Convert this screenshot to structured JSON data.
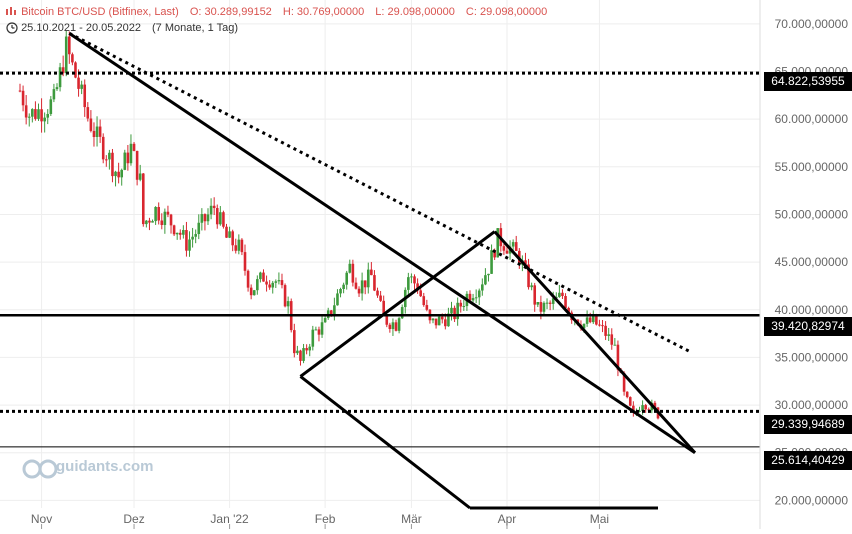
{
  "header": {
    "instrument": "Bitcoin BTC/USD (Bitfinex, Last)",
    "open": "O: 30.289,99152",
    "high": "H: 30.769,00000",
    "low": "L: 29.098,00000",
    "close": "C: 29.098,00000",
    "date_range": "25.10.2021 - 20.05.2022",
    "period": "(7 Monate, 1 Tag)"
  },
  "watermark": "guidants.com",
  "colors": {
    "up": "#3d9a3d",
    "down": "#d9262f",
    "line": "#000000",
    "grid": "#eeeeee",
    "axis_text": "#666666"
  },
  "chart_data": {
    "type": "candlestick",
    "x_ticks": [
      "Nov",
      "Dez",
      "Jan '22",
      "Feb",
      "Mär",
      "Apr",
      "Mai"
    ],
    "y_ticks": [
      "70.000,00000",
      "65.000,00000",
      "60.000,00000",
      "55.000,00000",
      "50.000,00000",
      "45.000,00000",
      "40.000,00000",
      "35.000,00000",
      "30.000,00000",
      "25.000,00000",
      "20.000,00000"
    ],
    "ylim": [
      19200,
      72500
    ],
    "xlim": [
      "2021-10-25",
      "2022-05-20"
    ],
    "levels": [
      {
        "label": "64.822,53955",
        "value": 64822.53955,
        "style": "dotted"
      },
      {
        "label": "39.420,82974",
        "value": 39420.82974,
        "style": "solid"
      },
      {
        "label": "29.339,94689",
        "value": 29339.94689,
        "style": "dotted"
      },
      {
        "label": "25.614,40429",
        "value": 25614.40429,
        "style": "thin"
      }
    ],
    "trendlines": [
      {
        "style": "dotted",
        "from": [
          "2021-11-10",
          69000
        ],
        "to": [
          "2022-05-31",
          35500
        ]
      },
      {
        "style": "solid",
        "from": [
          "2021-11-10",
          69000
        ],
        "to": [
          "2022-06-01",
          25000
        ]
      },
      {
        "style": "solid",
        "from": [
          "2022-01-24",
          33000
        ],
        "to": [
          "2022-03-28",
          48200
        ]
      },
      {
        "style": "solid",
        "from": [
          "2022-03-28",
          48200
        ],
        "to": [
          "2022-06-01",
          25000
        ]
      },
      {
        "style": "solid",
        "from": [
          "2022-01-24",
          33000
        ],
        "to": [
          "2022-03-20",
          19200
        ]
      },
      {
        "style": "solid",
        "from": [
          "2022-03-20",
          19200
        ],
        "to": [
          "2022-05-20",
          19200
        ]
      }
    ],
    "closes": [
      {
        "date": "2021-10-25",
        "close": 63000
      },
      {
        "date": "2021-10-28",
        "close": 60500
      },
      {
        "date": "2021-11-01",
        "close": 61000
      },
      {
        "date": "2021-11-05",
        "close": 61800
      },
      {
        "date": "2021-11-09",
        "close": 67500
      },
      {
        "date": "2021-11-12",
        "close": 64500
      },
      {
        "date": "2021-11-16",
        "close": 60200
      },
      {
        "date": "2021-11-19",
        "close": 58000
      },
      {
        "date": "2021-11-22",
        "close": 56500
      },
      {
        "date": "2021-11-26",
        "close": 54000
      },
      {
        "date": "2021-11-30",
        "close": 57000
      },
      {
        "date": "2021-12-03",
        "close": 53500
      },
      {
        "date": "2021-12-04",
        "close": 49000
      },
      {
        "date": "2021-12-08",
        "close": 50500
      },
      {
        "date": "2021-12-12",
        "close": 49500
      },
      {
        "date": "2021-12-15",
        "close": 48500
      },
      {
        "date": "2021-12-18",
        "close": 47000
      },
      {
        "date": "2021-12-22",
        "close": 48500
      },
      {
        "date": "2021-12-27",
        "close": 50800
      },
      {
        "date": "2021-12-31",
        "close": 47500
      },
      {
        "date": "2022-01-04",
        "close": 46500
      },
      {
        "date": "2022-01-08",
        "close": 42000
      },
      {
        "date": "2022-01-12",
        "close": 43500
      },
      {
        "date": "2022-01-16",
        "close": 43000
      },
      {
        "date": "2022-01-20",
        "close": 40500
      },
      {
        "date": "2022-01-22",
        "close": 36000
      },
      {
        "date": "2022-01-24",
        "close": 34500
      },
      {
        "date": "2022-01-28",
        "close": 37500
      },
      {
        "date": "2022-02-01",
        "close": 38500
      },
      {
        "date": "2022-02-05",
        "close": 41500
      },
      {
        "date": "2022-02-09",
        "close": 44500
      },
      {
        "date": "2022-02-12",
        "close": 42500
      },
      {
        "date": "2022-02-16",
        "close": 43500
      },
      {
        "date": "2022-02-20",
        "close": 39000
      },
      {
        "date": "2022-02-24",
        "close": 38500
      },
      {
        "date": "2022-02-28",
        "close": 43500
      },
      {
        "date": "2022-03-03",
        "close": 42500
      },
      {
        "date": "2022-03-07",
        "close": 38500
      },
      {
        "date": "2022-03-11",
        "close": 39000
      },
      {
        "date": "2022-03-15",
        "close": 39500
      },
      {
        "date": "2022-03-19",
        "close": 41500
      },
      {
        "date": "2022-03-23",
        "close": 42500
      },
      {
        "date": "2022-03-26",
        "close": 44500
      },
      {
        "date": "2022-03-29",
        "close": 47500
      },
      {
        "date": "2022-04-02",
        "close": 46500
      },
      {
        "date": "2022-04-05",
        "close": 45500
      },
      {
        "date": "2022-04-08",
        "close": 43000
      },
      {
        "date": "2022-04-11",
        "close": 40000
      },
      {
        "date": "2022-04-15",
        "close": 40500
      },
      {
        "date": "2022-04-19",
        "close": 41500
      },
      {
        "date": "2022-04-22",
        "close": 39500
      },
      {
        "date": "2022-04-26",
        "close": 38500
      },
      {
        "date": "2022-04-29",
        "close": 38800
      },
      {
        "date": "2022-05-03",
        "close": 37500
      },
      {
        "date": "2022-05-06",
        "close": 36000
      },
      {
        "date": "2022-05-09",
        "close": 31000
      },
      {
        "date": "2022-05-12",
        "close": 28800
      },
      {
        "date": "2022-05-15",
        "close": 30500
      },
      {
        "date": "2022-05-18",
        "close": 29700
      },
      {
        "date": "2022-05-20",
        "close": 29098
      }
    ]
  }
}
